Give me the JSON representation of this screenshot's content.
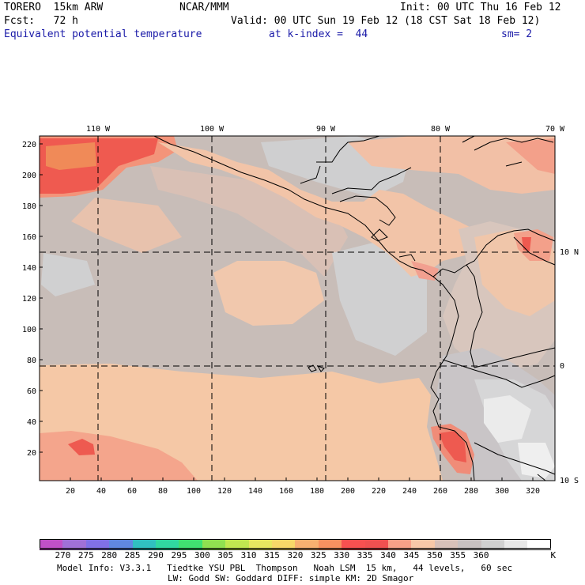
{
  "header": {
    "model": "TORERO  15km ARW",
    "org": "NCAR/MMM",
    "init": "Init: 00 UTC Thu 16 Feb 12",
    "fcst": "Fcst:   72 h",
    "valid": "Valid: 00 UTC Sun 19 Feb 12 (18 CST Sat 18 Feb 12)",
    "field": "Equivalent potential temperature",
    "level": "at k-index =  44",
    "smooth": "sm= 2"
  },
  "map": {
    "top_lon_labels": [
      "110 W",
      "100 W",
      "90 W",
      "80 W",
      "70 W"
    ],
    "right_lat_labels": [
      "10 N",
      "0",
      "10 S"
    ],
    "left_ticks": [
      "220",
      "200",
      "180",
      "160",
      "140",
      "120",
      "100",
      "80",
      "60",
      "40",
      "20"
    ],
    "bottom_ticks": [
      "20",
      "40",
      "60",
      "80",
      "100",
      "120",
      "140",
      "160",
      "180",
      "200",
      "220",
      "240",
      "260",
      "280",
      "300",
      "320"
    ]
  },
  "colorbar": {
    "colors": [
      "#c050c8",
      "#a070d8",
      "#8070e8",
      "#6088e0",
      "#30c0c0",
      "#30d8a0",
      "#40e070",
      "#90e050",
      "#c0e850",
      "#e8e860",
      "#f8d868",
      "#f8b070",
      "#f89060",
      "#f85050",
      "#f05050",
      "#f8a088",
      "#f8c8a8",
      "#d8c0b8",
      "#c8c0c0",
      "#d0d0d0",
      "#e8e8e8",
      "#ffffff"
    ],
    "labels": [
      "270",
      "275",
      "280",
      "285",
      "290",
      "295",
      "300",
      "305",
      "310",
      "315",
      "320",
      "325",
      "330",
      "335",
      "340",
      "345",
      "350",
      "355",
      "360"
    ],
    "unit": "K"
  },
  "footer": {
    "line1": "Model Info: V3.3.1   Tiedtke YSU PBL  Thompson   Noah LSM  15 km,   44 levels,   60 sec",
    "line2": "LW: Godd SW: Goddard DIFF: simple KM: 2D Smagor"
  }
}
